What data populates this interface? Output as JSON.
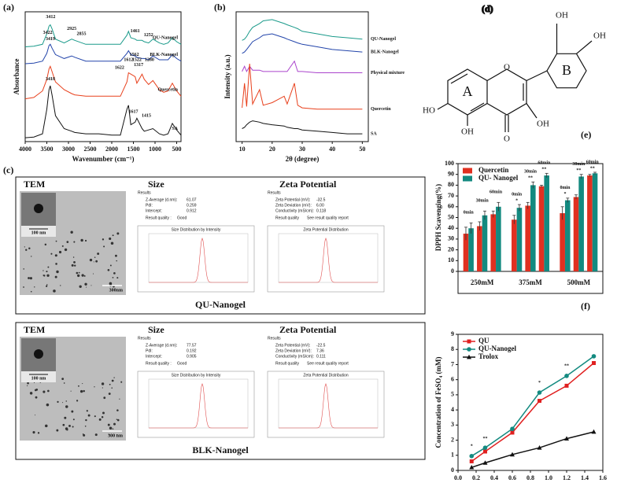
{
  "chart_data": [
    {
      "type": "line",
      "panel": "(a)",
      "xlabel": "Wavenumber (cm⁻¹)",
      "ylabel": "Absorbance",
      "legend": "inline",
      "x": [
        4000,
        3800,
        3600,
        3500,
        3450,
        3420,
        3380,
        3300,
        3100,
        2925,
        2855,
        2600,
        2300,
        2000,
        1800,
        1650,
        1612,
        1560,
        1460,
        1420,
        1300,
        1250,
        1150,
        1050,
        900,
        800,
        700,
        600,
        500,
        400
      ],
      "series": [
        {
          "name": "QU-Nanogel",
          "color": "#1a9a8a",
          "values": [
            7.3,
            7.35,
            7.5,
            8.3,
            8.9,
            9.0,
            8.7,
            7.9,
            7.6,
            7.9,
            7.8,
            7.5,
            7.5,
            7.5,
            7.5,
            8.2,
            8.5,
            8.0,
            7.9,
            7.8,
            7.8,
            7.7,
            7.6,
            7.9,
            7.6,
            7.5,
            7.6,
            8.0,
            7.7,
            7.5
          ]
        },
        {
          "name": "BLK-Nanogel",
          "color": "#2244aa",
          "values": [
            6.0,
            6.05,
            6.2,
            6.8,
            7.4,
            7.5,
            7.2,
            6.7,
            6.4,
            6.6,
            6.5,
            6.2,
            6.2,
            6.2,
            6.2,
            6.8,
            7.0,
            6.7,
            6.6,
            6.5,
            6.4,
            6.4,
            6.3,
            6.6,
            6.3,
            6.3,
            6.3,
            6.7,
            6.4,
            6.2
          ]
        },
        {
          "name": "Quercetin",
          "color": "#e8401c",
          "values": [
            3.3,
            3.4,
            3.9,
            4.8,
            5.6,
            5.8,
            5.4,
            4.6,
            4.0,
            3.7,
            3.6,
            3.5,
            3.5,
            3.5,
            3.5,
            4.6,
            5.3,
            5.2,
            5.0,
            4.5,
            5.2,
            4.8,
            4.4,
            4.7,
            4.0,
            3.8,
            3.9,
            4.5,
            3.9,
            3.5
          ]
        },
        {
          "name": "SA",
          "color": "#111111",
          "values": [
            0.3,
            0.35,
            0.6,
            2.5,
            4.0,
            4.3,
            3.6,
            2.0,
            1.0,
            0.8,
            0.7,
            0.6,
            0.6,
            0.5,
            0.5,
            2.5,
            2.8,
            1.3,
            1.5,
            1.8,
            1.0,
            0.8,
            0.9,
            1.0,
            0.6,
            0.5,
            0.6,
            1.4,
            0.9,
            0.5
          ]
        }
      ],
      "xlim": [
        4000,
        400
      ],
      "ylim": [
        0,
        10
      ],
      "xticks": [
        4000,
        3500,
        3000,
        2500,
        2000,
        1500,
        1000,
        500
      ],
      "annotations": [
        {
          "text": "3412",
          "x": 3412,
          "y": 9.6
        },
        {
          "text": "3422",
          "x": 3480,
          "y": 8.4
        },
        {
          "text": "2925",
          "x": 2925,
          "y": 8.7
        },
        {
          "text": "2855",
          "x": 2700,
          "y": 8.3
        },
        {
          "text": "1461",
          "x": 1461,
          "y": 8.5
        },
        {
          "text": "1252",
          "x": 1150,
          "y": 8.2
        },
        {
          "text": "1612",
          "x": 1612,
          "y": 6.3
        },
        {
          "text": "3419",
          "x": 3419,
          "y": 7.9
        },
        {
          "text": "1562",
          "x": 1480,
          "y": 6.7
        },
        {
          "text": "1522",
          "x": 1420,
          "y": 6.3
        },
        {
          "text": "1280",
          "x": 1130,
          "y": 6.3
        },
        {
          "text": "1317",
          "x": 1380,
          "y": 5.9
        },
        {
          "text": "1622",
          "x": 1820,
          "y": 5.7
        },
        {
          "text": "3418",
          "x": 3418,
          "y": 4.8
        },
        {
          "text": "1617",
          "x": 1500,
          "y": 2.3
        },
        {
          "text": "1415",
          "x": 1200,
          "y": 2.0
        }
      ]
    },
    {
      "type": "line",
      "panel": "(b)",
      "xlabel": "2θ (degree)",
      "ylabel": "Intensity (a.u.)",
      "legend": "right",
      "x": [
        10,
        10.8,
        11.5,
        12.5,
        13.5,
        15.8,
        17,
        20,
        24,
        25,
        27.4,
        28.5,
        30,
        35,
        40,
        45,
        50
      ],
      "series": [
        {
          "name": "QU-Nanogel",
          "color": "#1a9a8a",
          "values": [
            7.8,
            7.9,
            8.1,
            8.5,
            8.8,
            9.1,
            9.3,
            9.4,
            9.1,
            9.0,
            8.8,
            8.7,
            8.5,
            8.3,
            8.1,
            8.0,
            7.9
          ]
        },
        {
          "name": "BLK-Nanogel",
          "color": "#2244aa",
          "values": [
            6.8,
            6.9,
            7.1,
            7.4,
            7.7,
            8.0,
            8.2,
            8.3,
            8.0,
            7.9,
            7.7,
            7.6,
            7.5,
            7.3,
            7.1,
            7.0,
            6.9
          ]
        },
        {
          "name": "Physical mixture",
          "color": "#aa44cc",
          "values": [
            5.4,
            5.8,
            5.4,
            5.8,
            5.5,
            5.5,
            5.4,
            5.4,
            5.4,
            5.4,
            6.2,
            5.4,
            5.4,
            5.3,
            5.3,
            5.3,
            5.3
          ]
        },
        {
          "name": "Quercetin",
          "color": "#e8401c",
          "values": [
            2.6,
            4.5,
            2.7,
            6.0,
            2.9,
            4.0,
            2.8,
            3.0,
            3.5,
            2.9,
            4.5,
            2.8,
            2.6,
            2.5,
            2.5,
            2.5,
            2.5
          ]
        },
        {
          "name": "SA",
          "color": "#111111",
          "values": [
            1.0,
            1.1,
            1.3,
            1.5,
            1.6,
            1.5,
            1.4,
            1.3,
            1.2,
            1.1,
            1.0,
            1.0,
            0.9,
            0.8,
            0.7,
            0.6,
            0.6
          ]
        }
      ],
      "xlim": [
        8,
        52
      ],
      "ylim": [
        0,
        10
      ],
      "xticks": [
        10,
        20,
        30,
        40,
        50
      ]
    },
    {
      "type": "bar",
      "panel": "(e)",
      "ylabel": "DPPH Scavenging(%)",
      "legend": "top-left",
      "groups": [
        "250mM",
        "375mM",
        "500mM"
      ],
      "subgroups": [
        "0min",
        "30min",
        "60min"
      ],
      "series": [
        {
          "name": "Quercetin",
          "color": "#e03020",
          "values": [
            35,
            42,
            53,
            48,
            61,
            79,
            54,
            69,
            89
          ],
          "errors": [
            6,
            4,
            3,
            4,
            3,
            1,
            6,
            2,
            1
          ]
        },
        {
          "name": "QU- Nanogel",
          "color": "#138a80",
          "values": [
            40,
            52,
            60,
            59,
            80,
            89,
            66,
            88,
            91
          ],
          "errors": [
            5,
            4,
            4,
            3,
            3,
            2,
            2,
            2,
            1
          ]
        }
      ],
      "ylim": [
        0,
        100
      ],
      "yticks": [
        0,
        10,
        20,
        30,
        40,
        50,
        60,
        70,
        80,
        90,
        100
      ],
      "stars": [
        {
          "text": "*",
          "index": 3
        },
        {
          "text": "**",
          "index": 4
        },
        {
          "text": "**",
          "index": 5
        },
        {
          "text": "*",
          "index": 6
        },
        {
          "text": "**",
          "index": 7
        },
        {
          "text": "**",
          "index": 8
        }
      ]
    },
    {
      "type": "line",
      "panel": "(f)",
      "xlabel": "Concentration (mM)",
      "ylabel": "Concentration of FeSO₄ (mM)",
      "legend": "top-left",
      "x": [
        0.15,
        0.3,
        0.6,
        0.9,
        1.2,
        1.5
      ],
      "series": [
        {
          "name": "QU",
          "color": "#e02020",
          "marker": "square",
          "values": [
            0.6,
            1.25,
            2.5,
            4.6,
            5.6,
            7.1
          ]
        },
        {
          "name": "QU-Nanogel",
          "color": "#138a80",
          "marker": "circle",
          "values": [
            0.95,
            1.5,
            2.75,
            5.15,
            6.25,
            7.55
          ]
        },
        {
          "name": "Trolox",
          "color": "#111111",
          "marker": "triangle",
          "values": [
            0.2,
            0.5,
            1.05,
            1.5,
            2.1,
            2.55
          ]
        }
      ],
      "xlim": [
        0,
        1.6
      ],
      "ylim": [
        0,
        9
      ],
      "xticks": [
        {
          "value": 0,
          "label": "0.0"
        },
        0.2,
        0.4,
        0.6,
        0.8,
        {
          "value": 1,
          "label": "1.0"
        },
        1.2,
        1.4,
        1.6
      ],
      "yticks": [
        0,
        1,
        2,
        3,
        4,
        5,
        6,
        7,
        8,
        9
      ],
      "annotations": [
        {
          "text": "*",
          "x": 0.15,
          "y": 1.6
        },
        {
          "text": "**",
          "x": 0.3,
          "y": 2.1
        },
        {
          "text": "*",
          "x": 0.9,
          "y": 5.8
        },
        {
          "text": "**",
          "x": 1.2,
          "y": 6.9
        }
      ]
    }
  ],
  "tem_panel": {
    "panel": "(c)",
    "samples": [
      {
        "name": "QU-Nanogel",
        "tem": "TEM",
        "size": "Size",
        "zeta": "Zeta Potential",
        "inset_scale": "100 nm",
        "scale": "300nm",
        "results": "Results",
        "size_report": [
          [
            "Z-Average (d.nm):",
            "61.07"
          ],
          [
            "PdI:",
            "0.259"
          ],
          [
            "Intercept:",
            "0.912"
          ]
        ],
        "quality": [
          "Result quality :",
          "Good"
        ],
        "zeta_report": [
          [
            "Zeta Potential (mV):",
            "-32.5"
          ],
          [
            "Zeta Deviation (mV):",
            "6.00"
          ],
          [
            "Conductivity (mS/cm):",
            "0.118"
          ]
        ],
        "zeta_quality": [
          "Result quality",
          "See result quality report"
        ],
        "size_plot": "Size Distribution by Intensity",
        "zeta_plot": "Zeta Potential Distribution"
      },
      {
        "name": "BLK-Nanogel",
        "tem": "TEM",
        "size": "Size",
        "zeta": "Zeta Potential",
        "inset_scale": "100 nm",
        "scale": "300 nm",
        "results": "Results",
        "size_report": [
          [
            "Z-Average (d.nm):",
            "77.57"
          ],
          [
            "PdI:",
            "0.192"
          ],
          [
            "Intercept:",
            "0.905"
          ]
        ],
        "quality": [
          "Result quality :",
          "Good"
        ],
        "zeta_report": [
          [
            "Zeta Potential (mV):",
            "-22.5"
          ],
          [
            "Zeta Deviation (mV):",
            "7.36"
          ],
          [
            "Conductivity (mS/cm):",
            "0.111"
          ]
        ],
        "zeta_quality": [
          "Result quality",
          "See result quality report"
        ],
        "size_plot": "Size Distribution by Intensity",
        "zeta_plot": "Zeta Potential Distribution"
      }
    ]
  },
  "structure": {
    "panel": "(d)",
    "atoms": [
      "OH",
      "OH",
      "HO",
      "OH",
      "OH",
      "O",
      "O"
    ],
    "rings": [
      "A",
      "B"
    ]
  }
}
